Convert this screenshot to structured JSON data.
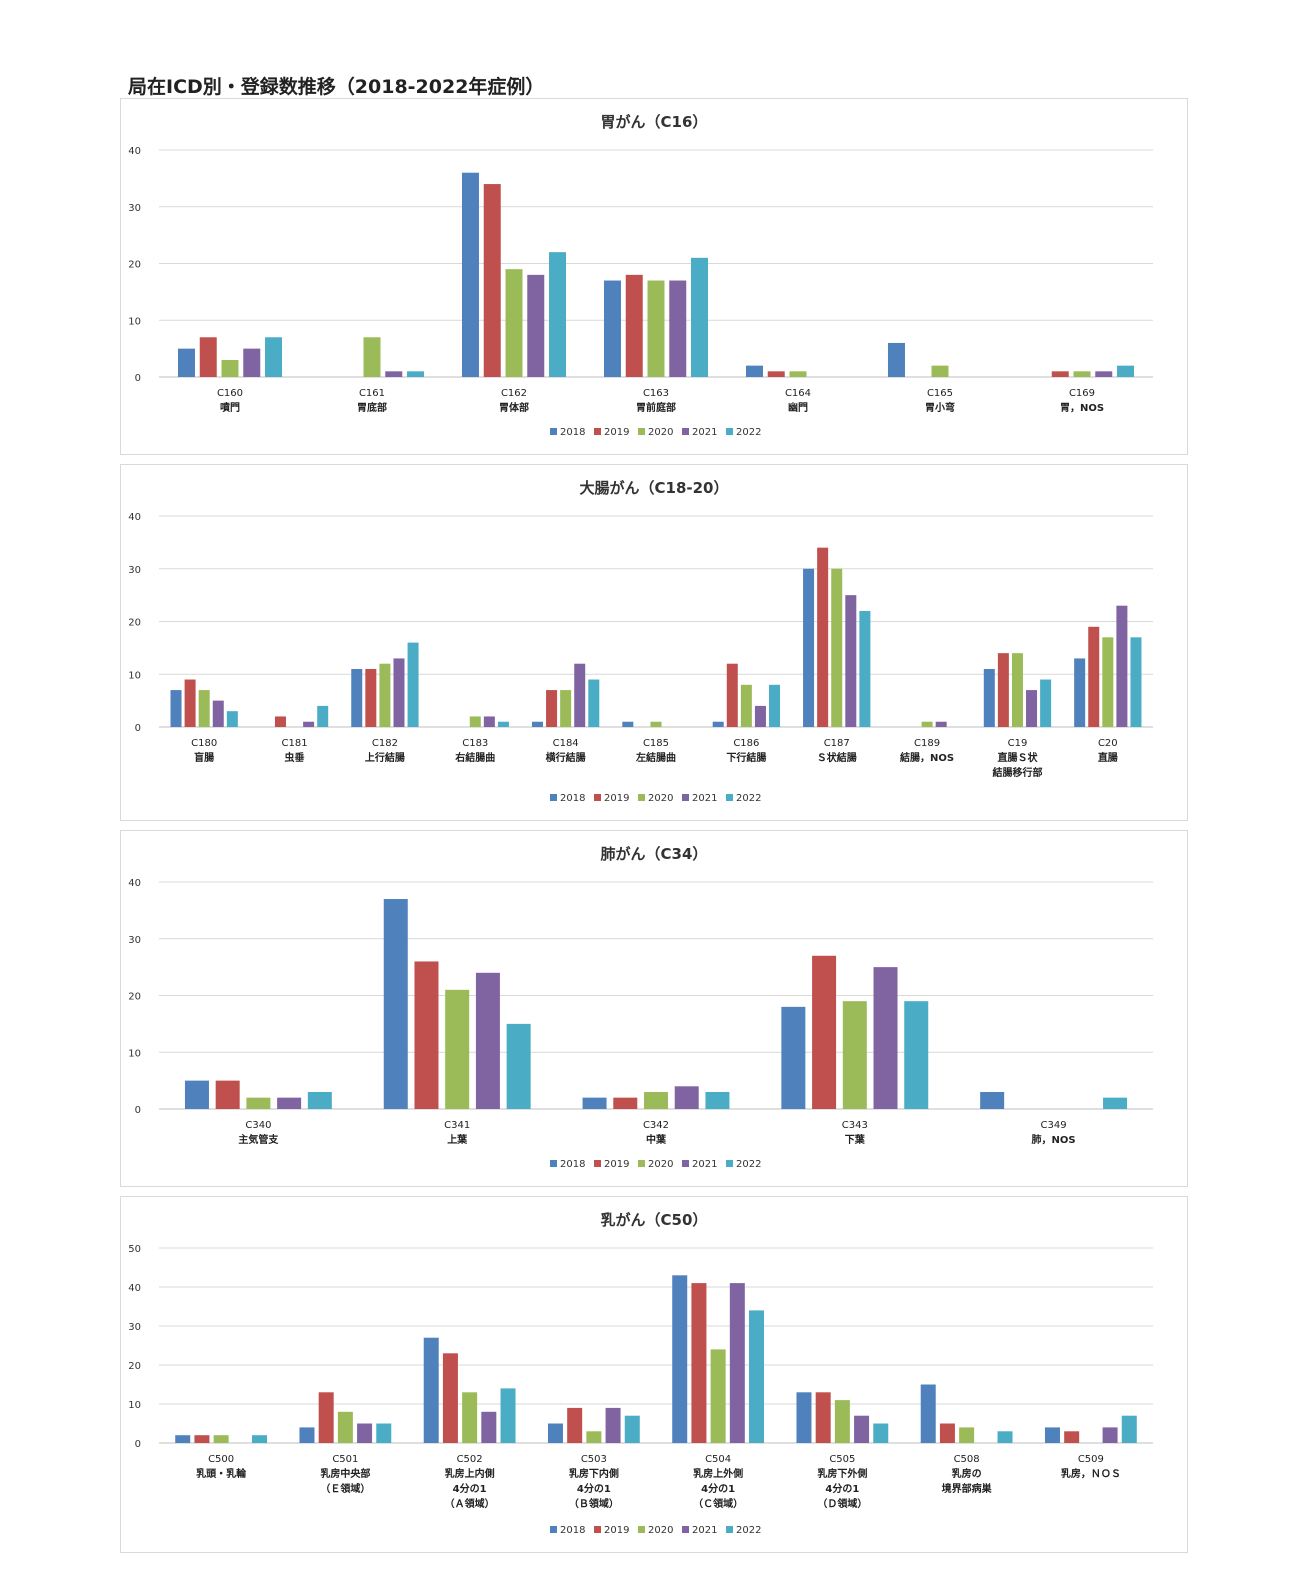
{
  "page_title": "局在ICD別・登録数推移（2018-2022年症例）",
  "colors": {
    "2018": "#4f81bd",
    "2019": "#c0504d",
    "2020": "#9bbb59",
    "2021": "#8064a2",
    "2022": "#4bacc6"
  },
  "chart_data": [
    {
      "type": "bar",
      "title": "胃がん（C16）",
      "ylim": [
        0,
        40
      ],
      "yticks": [
        0,
        10,
        20,
        30,
        40
      ],
      "categories": [
        {
          "code": "C160",
          "lines": [
            "噴門"
          ]
        },
        {
          "code": "C161",
          "lines": [
            "胃底部"
          ]
        },
        {
          "code": "C162",
          "lines": [
            "胃体部"
          ]
        },
        {
          "code": "C163",
          "lines": [
            "胃前庭部"
          ]
        },
        {
          "code": "C164",
          "lines": [
            "幽門"
          ]
        },
        {
          "code": "C165",
          "lines": [
            "胃小弯"
          ]
        },
        {
          "code": "C169",
          "lines": [
            "胃，NOS"
          ]
        }
      ],
      "series": [
        {
          "name": "2018",
          "values": [
            5,
            0,
            36,
            17,
            2,
            6,
            0
          ]
        },
        {
          "name": "2019",
          "values": [
            7,
            0,
            34,
            18,
            1,
            0,
            1
          ]
        },
        {
          "name": "2020",
          "values": [
            3,
            7,
            19,
            17,
            1,
            2,
            1
          ]
        },
        {
          "name": "2021",
          "values": [
            5,
            1,
            18,
            17,
            0,
            0,
            1
          ]
        },
        {
          "name": "2022",
          "values": [
            7,
            1,
            22,
            21,
            0,
            0,
            2
          ]
        }
      ],
      "legend": "bottom"
    },
    {
      "type": "bar",
      "title": "大腸がん（C18-20）",
      "ylim": [
        0,
        40
      ],
      "yticks": [
        0,
        10,
        20,
        30,
        40
      ],
      "categories": [
        {
          "code": "C180",
          "lines": [
            "盲腸"
          ]
        },
        {
          "code": "C181",
          "lines": [
            "虫垂"
          ]
        },
        {
          "code": "C182",
          "lines": [
            "上行結腸"
          ]
        },
        {
          "code": "C183",
          "lines": [
            "右結腸曲"
          ]
        },
        {
          "code": "C184",
          "lines": [
            "横行結腸"
          ]
        },
        {
          "code": "C185",
          "lines": [
            "左結腸曲"
          ]
        },
        {
          "code": "C186",
          "lines": [
            "下行結腸"
          ]
        },
        {
          "code": "C187",
          "lines": [
            "Ｓ状結腸"
          ]
        },
        {
          "code": "C189",
          "lines": [
            "結腸，NOS"
          ]
        },
        {
          "code": "C19",
          "lines": [
            "直腸Ｓ状",
            "結腸移行部"
          ]
        },
        {
          "code": "C20",
          "lines": [
            "直腸"
          ]
        }
      ],
      "series": [
        {
          "name": "2018",
          "values": [
            7,
            0,
            11,
            0,
            1,
            1,
            1,
            30,
            0,
            11,
            13
          ]
        },
        {
          "name": "2019",
          "values": [
            9,
            2,
            11,
            0,
            7,
            0,
            12,
            34,
            0,
            14,
            19
          ]
        },
        {
          "name": "2020",
          "values": [
            7,
            0,
            12,
            2,
            7,
            1,
            8,
            30,
            1,
            14,
            17
          ]
        },
        {
          "name": "2021",
          "values": [
            5,
            1,
            13,
            2,
            12,
            0,
            4,
            25,
            1,
            7,
            23
          ]
        },
        {
          "name": "2022",
          "values": [
            3,
            4,
            16,
            1,
            9,
            0,
            8,
            22,
            0,
            9,
            17
          ]
        }
      ],
      "legend": "bottom"
    },
    {
      "type": "bar",
      "title": "肺がん（C34）",
      "ylim": [
        0,
        40
      ],
      "yticks": [
        0,
        10,
        20,
        30,
        40
      ],
      "categories": [
        {
          "code": "C340",
          "lines": [
            "主気管支"
          ]
        },
        {
          "code": "C341",
          "lines": [
            "上葉"
          ]
        },
        {
          "code": "C342",
          "lines": [
            "中葉"
          ]
        },
        {
          "code": "C343",
          "lines": [
            "下葉"
          ]
        },
        {
          "code": "C349",
          "lines": [
            "肺，NOS"
          ]
        }
      ],
      "series": [
        {
          "name": "2018",
          "values": [
            5,
            37,
            2,
            18,
            3
          ]
        },
        {
          "name": "2019",
          "values": [
            5,
            26,
            2,
            27,
            0
          ]
        },
        {
          "name": "2020",
          "values": [
            2,
            21,
            3,
            19,
            0
          ]
        },
        {
          "name": "2021",
          "values": [
            2,
            24,
            4,
            25,
            0
          ]
        },
        {
          "name": "2022",
          "values": [
            3,
            15,
            3,
            19,
            2
          ]
        }
      ],
      "legend": "bottom"
    },
    {
      "type": "bar",
      "title": "乳がん（C50）",
      "ylim": [
        0,
        50
      ],
      "yticks": [
        0,
        10,
        20,
        30,
        40,
        50
      ],
      "categories": [
        {
          "code": "C500",
          "lines": [
            "乳頭・乳輪"
          ]
        },
        {
          "code": "C501",
          "lines": [
            "乳房中央部",
            "（Ｅ領域）"
          ]
        },
        {
          "code": "C502",
          "lines": [
            "乳房上内側",
            "4分の1",
            "（Ａ領域）"
          ]
        },
        {
          "code": "C503",
          "lines": [
            "乳房下内側",
            "4分の1",
            "（Ｂ領域）"
          ]
        },
        {
          "code": "C504",
          "lines": [
            "乳房上外側",
            "4分の1",
            "（Ｃ領域）"
          ]
        },
        {
          "code": "C505",
          "lines": [
            "乳房下外側",
            "4分の1",
            "（Ｄ領域）"
          ]
        },
        {
          "code": "C508",
          "lines": [
            "乳房の",
            "境界部病巣"
          ]
        },
        {
          "code": "C509",
          "lines": [
            "乳房，ＮＯＳ"
          ]
        }
      ],
      "series": [
        {
          "name": "2018",
          "values": [
            2,
            4,
            27,
            5,
            43,
            13,
            15,
            4
          ]
        },
        {
          "name": "2019",
          "values": [
            2,
            13,
            23,
            9,
            41,
            13,
            5,
            3
          ]
        },
        {
          "name": "2020",
          "values": [
            2,
            8,
            13,
            3,
            24,
            11,
            4,
            0
          ]
        },
        {
          "name": "2021",
          "values": [
            0,
            5,
            8,
            9,
            41,
            7,
            0,
            4
          ]
        },
        {
          "name": "2022",
          "values": [
            2,
            5,
            14,
            7,
            34,
            5,
            3,
            7
          ]
        }
      ],
      "legend": "bottom"
    }
  ]
}
